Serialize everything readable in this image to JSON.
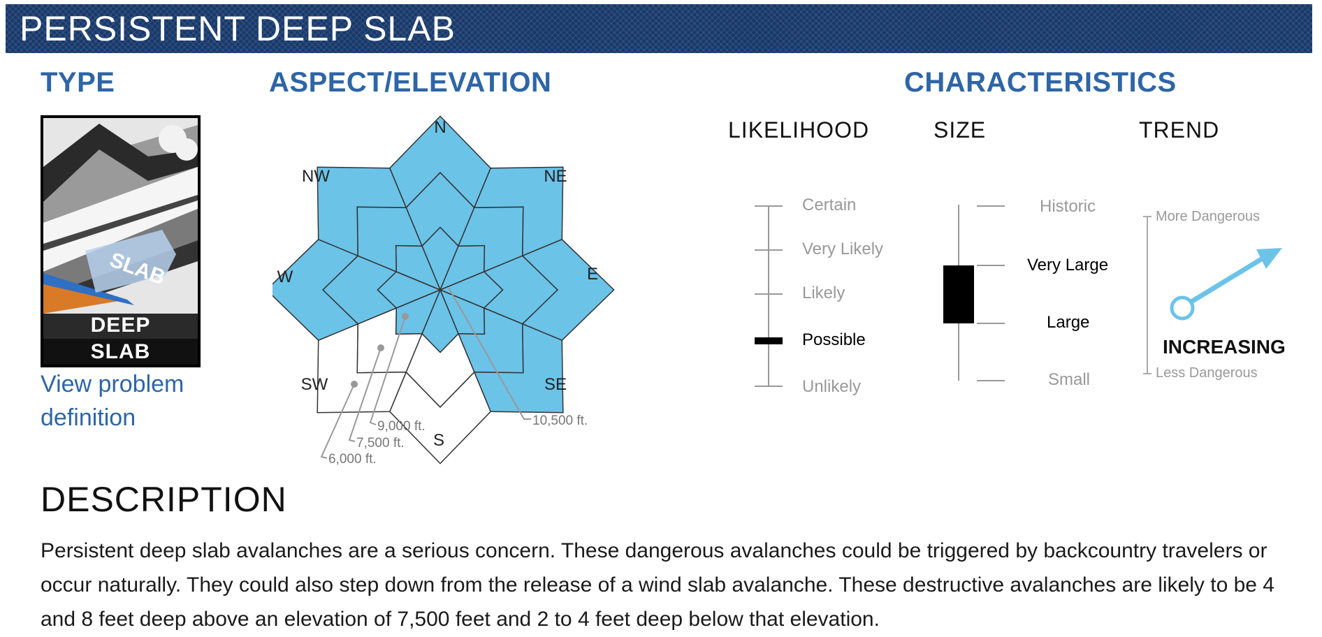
{
  "banner": {
    "title": "PERSISTENT DEEP SLAB"
  },
  "type": {
    "heading": "TYPE",
    "icon_label_line1": "DEEP",
    "icon_label_line2": "SLAB",
    "icon_overlay_text": "SLAB",
    "link": "View problem definition"
  },
  "aspect": {
    "heading": "ASPECT/ELEVATION",
    "directions": {
      "n": "N",
      "ne": "NE",
      "e": "E",
      "se": "SE",
      "s": "S",
      "sw": "SW",
      "w": "W",
      "nw": "NW"
    },
    "elevations": {
      "e1": "10,500 ft.",
      "e2": "9,000 ft.",
      "e3": "7,500 ft.",
      "e4": "6,000 ft."
    },
    "fill_color": "#6bc3e8",
    "highlighted": "all aspects at all elevations except the lower two bands of SW and S"
  },
  "characteristics": {
    "heading": "CHARACTERISTICS",
    "likelihood": {
      "label": "LIKELIHOOD",
      "levels": [
        "Certain",
        "Very Likely",
        "Likely",
        "Possible",
        "Unlikely"
      ],
      "selected": "Possible"
    },
    "size": {
      "label": "SIZE",
      "levels": [
        "Historic",
        "Very Large",
        "Large",
        "Small"
      ],
      "selected_range": [
        "Large",
        "Very Large"
      ]
    },
    "trend": {
      "label": "TREND",
      "top_text": "More Dangerous",
      "bottom_text": "Less Dangerous",
      "value": "INCREASING",
      "arrow_color": "#6bc3e8"
    }
  },
  "description": {
    "heading": "DESCRIPTION",
    "text": "Persistent deep slab avalanches are a serious concern. These dangerous avalanches could be triggered by backcountry travelers or occur naturally. They could also step down from the release of a wind slab avalanche. These destructive avalanches are likely to be 4 and 8 feet deep above an elevation of 7,500 feet and 2 to 4 feet deep below that elevation."
  }
}
